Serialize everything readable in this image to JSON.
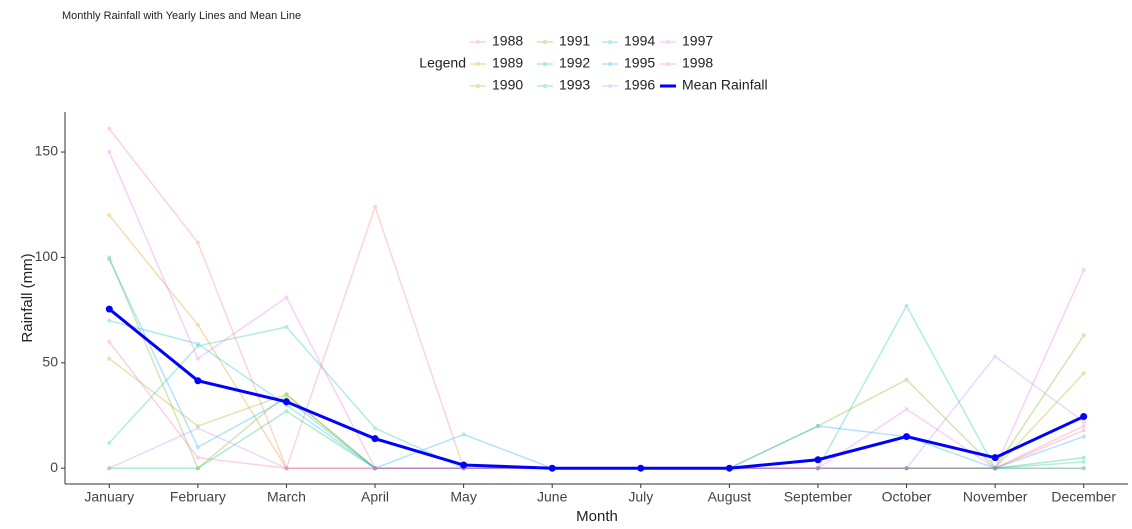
{
  "chart_data": {
    "type": "line",
    "title": "Monthly Rainfall with Yearly Lines and Mean Line",
    "x_label": "Month",
    "y_label": "Rainfall (mm)",
    "legend_title": "Legend",
    "categories": [
      "January",
      "February",
      "March",
      "April",
      "May",
      "June",
      "July",
      "August",
      "September",
      "October",
      "November",
      "December"
    ],
    "ylim": [
      -7.5,
      169
    ],
    "yticks": [
      0,
      50,
      100,
      150
    ],
    "grid": false,
    "legend": "top",
    "series": [
      {
        "name": "1988",
        "color": "#F8766D",
        "values": [
          161,
          107,
          0,
          124,
          0,
          0,
          0,
          0,
          0,
          0,
          0,
          20
        ]
      },
      {
        "name": "1989",
        "color": "#DB8E00",
        "values": [
          120,
          68,
          0,
          0,
          0,
          0,
          0,
          0,
          0,
          0,
          0,
          0
        ]
      },
      {
        "name": "1990",
        "color": "#AEA200",
        "values": [
          52,
          20,
          35,
          0,
          0,
          0,
          0,
          0,
          0,
          0,
          0,
          45
        ]
      },
      {
        "name": "1991",
        "color": "#64B200",
        "values": [
          100,
          0,
          35,
          0,
          0,
          0,
          0,
          0,
          20,
          42,
          0,
          63
        ]
      },
      {
        "name": "1992",
        "color": "#00BD5C",
        "values": [
          0,
          0,
          27,
          0,
          0,
          0,
          0,
          0,
          0,
          0,
          0,
          5
        ]
      },
      {
        "name": "1993",
        "color": "#00C1A7",
        "values": [
          12,
          58,
          67,
          19,
          0,
          0,
          0,
          0,
          0,
          77,
          0,
          3
        ]
      },
      {
        "name": "1994",
        "color": "#00BADE",
        "values": [
          70,
          59,
          30,
          0,
          0,
          0,
          0,
          0,
          0,
          0,
          0,
          0
        ]
      },
      {
        "name": "1995",
        "color": "#00A6FF",
        "values": [
          99,
          10,
          33,
          0,
          16,
          0,
          0,
          0,
          20,
          15,
          0,
          15
        ]
      },
      {
        "name": "1996",
        "color": "#B385FF",
        "values": [
          0,
          19,
          0,
          0,
          0,
          0,
          0,
          0,
          0,
          0,
          53,
          22
        ]
      },
      {
        "name": "1997",
        "color": "#EF67EB",
        "values": [
          150,
          52,
          81,
          0,
          0,
          0,
          0,
          0,
          0,
          28,
          0,
          94
        ]
      },
      {
        "name": "1998",
        "color": "#FF63B6",
        "values": [
          60,
          5,
          0,
          0,
          0,
          0,
          0,
          0,
          0,
          0,
          0,
          18
        ]
      },
      {
        "name": "Mean Rainfall",
        "color": "#0000FF",
        "values": [
          75.5,
          41.5,
          31.5,
          14,
          1.5,
          0,
          0,
          0,
          4,
          15,
          5,
          24.5
        ]
      }
    ]
  }
}
